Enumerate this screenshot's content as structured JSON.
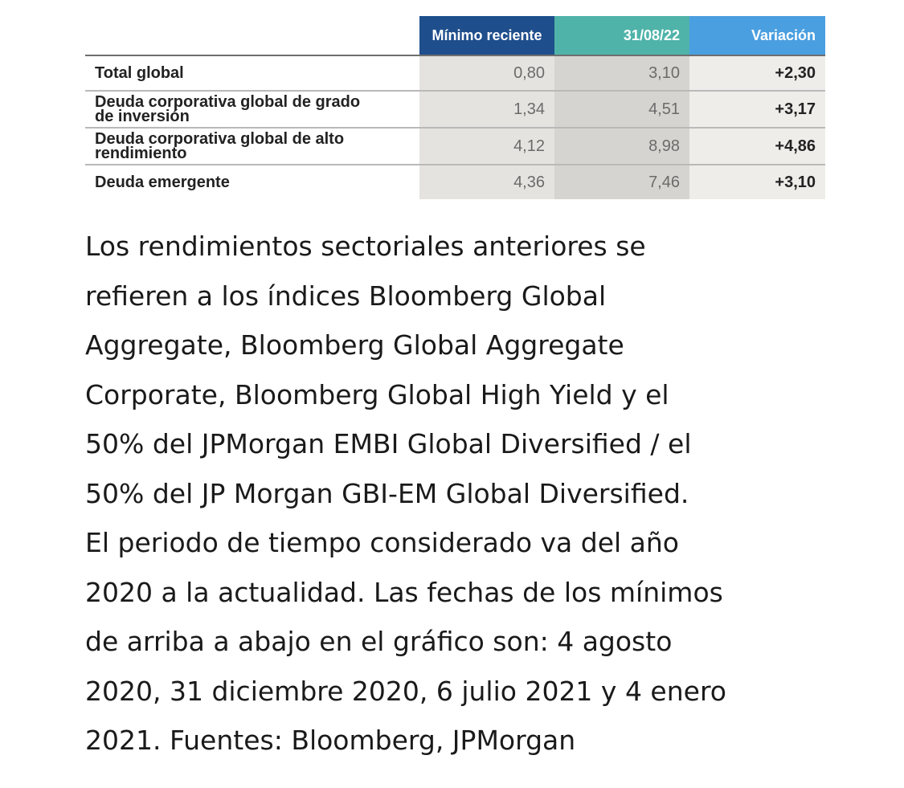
{
  "table": {
    "headers": {
      "label": "",
      "min": "Mínimo reciente",
      "date": "31/08/22",
      "var": "Variación"
    },
    "rows": [
      {
        "label_lines": [
          "Total global"
        ],
        "min": "0,80",
        "date": "3,10",
        "var": "+2,30"
      },
      {
        "label_lines": [
          "Deuda corporativa global de grado",
          "de inversión"
        ],
        "min": "1,34",
        "date": "4,51",
        "var": "+3,17"
      },
      {
        "label_lines": [
          "Deuda corporativa global de alto",
          "rendimiento"
        ],
        "min": "4,12",
        "date": "8,98",
        "var": "+4,86"
      },
      {
        "label_lines": [
          "Deuda emergente"
        ],
        "min": "4,36",
        "date": "7,46",
        "var": "+3,10"
      }
    ]
  },
  "note": {
    "lines": [
      "Los rendimientos sectoriales anteriores se",
      "refieren a los índices Bloomberg Global",
      "Aggregate, Bloomberg Global Aggregate",
      "Corporate, Bloomberg Global High Yield y el",
      "50% del JPMorgan EMBI Global Diversified / el",
      "50% del JP Morgan GBI-EM Global Diversified.",
      "El periodo de tiempo considerado va del año",
      "2020 a la actualidad. Las fechas de los mínimos",
      "de arriba a abajo en el gráfico son: 4 agosto",
      "2020, 31 diciembre 2020, 6 julio 2021 y 4 enero",
      "2021. Fuentes: Bloomberg, JPMorgan"
    ]
  },
  "colors": {
    "header_min": "#1f4e8c",
    "header_date": "#4fb3a9",
    "header_var": "#4a9fe0"
  }
}
